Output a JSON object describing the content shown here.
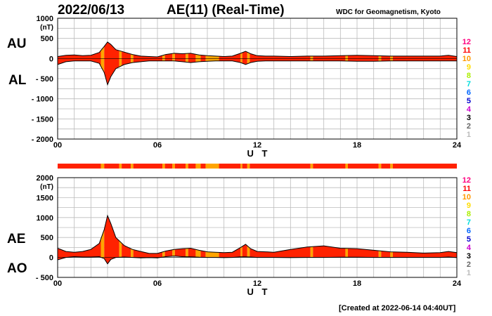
{
  "header": {
    "date": "2022/06/13",
    "title": "AE(11) (Real-Time)",
    "source": "WDC for Geomagnetism, Kyoto"
  },
  "footer": {
    "created": "[Created at 2022-06-14 04:40UT]"
  },
  "colors": {
    "activity_high": "#ff2200",
    "activity_mid": "#ffa500"
  },
  "chart_data": [
    {
      "type": "area",
      "panel": "AU/AL",
      "unit": "(nT)",
      "xlabel": "U T",
      "x_ticks": [
        "00",
        "06",
        "12",
        "18",
        "24"
      ],
      "xlim": [
        0,
        24
      ],
      "ylim": [
        -2000,
        1000
      ],
      "y_ticks": [
        "1000",
        "500",
        "0",
        "- 500",
        "- 1000",
        "- 1500",
        "- 2000"
      ],
      "y_tick_values": [
        1000,
        500,
        0,
        -500,
        -1000,
        -1500,
        -2000
      ],
      "labels": {
        "upper": "AU",
        "lower": "AL"
      },
      "grid": true,
      "series": [
        {
          "name": "AU",
          "x": [
            0,
            0.5,
            1,
            1.5,
            2,
            2.5,
            2.8,
            3,
            3.2,
            3.5,
            4,
            4.5,
            5,
            5.5,
            6,
            6.5,
            7,
            7.5,
            8,
            8.5,
            9,
            9.5,
            10,
            10.5,
            11,
            11.3,
            11.6,
            12,
            12.5,
            13,
            14,
            15,
            16,
            17,
            18,
            19,
            20,
            21,
            22,
            23,
            23.5,
            24
          ],
          "values": [
            50,
            80,
            90,
            70,
            80,
            150,
            300,
            410,
            350,
            220,
            160,
            100,
            60,
            50,
            40,
            100,
            130,
            120,
            130,
            90,
            70,
            60,
            50,
            60,
            130,
            180,
            120,
            70,
            60,
            60,
            50,
            60,
            60,
            70,
            80,
            70,
            60,
            60,
            60,
            60,
            80,
            50
          ]
        },
        {
          "name": "AL",
          "x": [
            0,
            0.5,
            1,
            1.5,
            2,
            2.5,
            2.8,
            3,
            3.2,
            3.5,
            4,
            4.5,
            5,
            5.5,
            6,
            6.5,
            7,
            7.5,
            8,
            8.5,
            9,
            9.5,
            10,
            10.5,
            11,
            11.3,
            11.6,
            12,
            12.5,
            13,
            14,
            15,
            16,
            17,
            18,
            19,
            20,
            21,
            22,
            23,
            23.5,
            24
          ],
          "values": [
            -150,
            -80,
            -60,
            -60,
            -60,
            -120,
            -350,
            -650,
            -450,
            -250,
            -150,
            -100,
            -80,
            -60,
            -60,
            -60,
            -60,
            -80,
            -100,
            -80,
            -70,
            -60,
            -60,
            -60,
            -100,
            -150,
            -100,
            -70,
            -60,
            -60,
            -60,
            -60,
            -60,
            -60,
            -70,
            -70,
            -60,
            -60,
            -60,
            -60,
            -60,
            -60
          ]
        }
      ]
    },
    {
      "type": "area",
      "panel": "AE/AO",
      "unit": "(nT)",
      "xlabel": "U T",
      "x_ticks": [
        "00",
        "06",
        "12",
        "18",
        "24"
      ],
      "xlim": [
        0,
        24
      ],
      "ylim": [
        -500,
        2000
      ],
      "y_ticks": [
        "2000",
        "1500",
        "1000",
        "500",
        "0",
        "- 500"
      ],
      "y_tick_values": [
        2000,
        1500,
        1000,
        500,
        0,
        -500
      ],
      "labels": {
        "upper": "AE",
        "lower": "AO"
      },
      "grid": true,
      "series": [
        {
          "name": "AE",
          "x": [
            0,
            0.5,
            1,
            1.5,
            2,
            2.5,
            2.8,
            3,
            3.2,
            3.5,
            4,
            4.5,
            5,
            5.5,
            6,
            6.5,
            7,
            7.5,
            8,
            8.5,
            9,
            9.5,
            10,
            10.5,
            11,
            11.3,
            11.6,
            12,
            12.5,
            13,
            14,
            15,
            16,
            17,
            18,
            19,
            20,
            21,
            22,
            23,
            23.5,
            24
          ],
          "values": [
            230,
            150,
            130,
            150,
            200,
            350,
            700,
            1050,
            850,
            500,
            300,
            200,
            150,
            100,
            100,
            160,
            200,
            220,
            230,
            180,
            140,
            130,
            120,
            130,
            250,
            330,
            220,
            150,
            140,
            130,
            200,
            260,
            290,
            230,
            220,
            180,
            140,
            130,
            110,
            120,
            150,
            120
          ]
        },
        {
          "name": "AO",
          "x": [
            0,
            0.5,
            1,
            1.5,
            2,
            2.5,
            2.8,
            3,
            3.2,
            3.5,
            4,
            4.5,
            5,
            5.5,
            6,
            6.5,
            7,
            7.5,
            8,
            8.5,
            9,
            9.5,
            10,
            10.5,
            11,
            11.3,
            11.6,
            12,
            12.5,
            13,
            14,
            15,
            16,
            17,
            18,
            19,
            20,
            21,
            22,
            23,
            23.5,
            24
          ],
          "values": [
            -60,
            0,
            20,
            10,
            10,
            20,
            -30,
            -160,
            -50,
            0,
            10,
            0,
            -10,
            -5,
            -10,
            20,
            35,
            20,
            15,
            5,
            0,
            0,
            -5,
            0,
            15,
            15,
            10,
            0,
            0,
            0,
            -5,
            0,
            0,
            5,
            5,
            0,
            0,
            0,
            0,
            0,
            10,
            -5
          ]
        }
      ]
    }
  ],
  "status_bands": [
    {
      "x": [
        0,
        2.6
      ],
      "color": "high"
    },
    {
      "x": [
        2.6,
        2.8
      ],
      "color": "mid"
    },
    {
      "x": [
        2.8,
        3.7
      ],
      "color": "high"
    },
    {
      "x": [
        3.7,
        3.85
      ],
      "color": "mid"
    },
    {
      "x": [
        3.85,
        4.4
      ],
      "color": "high"
    },
    {
      "x": [
        4.4,
        4.55
      ],
      "color": "mid"
    },
    {
      "x": [
        4.55,
        6.3
      ],
      "color": "high"
    },
    {
      "x": [
        6.3,
        6.45
      ],
      "color": "mid"
    },
    {
      "x": [
        6.45,
        6.9
      ],
      "color": "high"
    },
    {
      "x": [
        6.9,
        7.05
      ],
      "color": "mid"
    },
    {
      "x": [
        7.05,
        7.7
      ],
      "color": "high"
    },
    {
      "x": [
        7.7,
        7.85
      ],
      "color": "mid"
    },
    {
      "x": [
        7.85,
        8.3
      ],
      "color": "high"
    },
    {
      "x": [
        8.3,
        8.6
      ],
      "color": "mid"
    },
    {
      "x": [
        8.6,
        8.9
      ],
      "color": "high"
    },
    {
      "x": [
        8.9,
        9.7
      ],
      "color": "mid"
    },
    {
      "x": [
        9.7,
        11.0
      ],
      "color": "high"
    },
    {
      "x": [
        11.0,
        11.1
      ],
      "color": "mid"
    },
    {
      "x": [
        11.1,
        11.4
      ],
      "color": "high"
    },
    {
      "x": [
        11.4,
        11.55
      ],
      "color": "mid"
    },
    {
      "x": [
        11.55,
        15.2
      ],
      "color": "high"
    },
    {
      "x": [
        15.2,
        15.35
      ],
      "color": "mid"
    },
    {
      "x": [
        15.35,
        17.3
      ],
      "color": "high"
    },
    {
      "x": [
        17.3,
        17.45
      ],
      "color": "mid"
    },
    {
      "x": [
        17.45,
        19.3
      ],
      "color": "high"
    },
    {
      "x": [
        19.3,
        19.45
      ],
      "color": "mid"
    },
    {
      "x": [
        19.45,
        20.0
      ],
      "color": "high"
    },
    {
      "x": [
        20.0,
        20.15
      ],
      "color": "mid"
    },
    {
      "x": [
        20.15,
        24
      ],
      "color": "high"
    }
  ],
  "level_legend": [
    {
      "label": "12",
      "color": "#ff0080"
    },
    {
      "label": "11",
      "color": "#ff0000"
    },
    {
      "label": "10",
      "color": "#ff9900"
    },
    {
      "label": "9",
      "color": "#ffdd00"
    },
    {
      "label": "8",
      "color": "#aaee00"
    },
    {
      "label": "7",
      "color": "#00dddd"
    },
    {
      "label": "6",
      "color": "#0066ff"
    },
    {
      "label": "5",
      "color": "#0000cc"
    },
    {
      "label": "4",
      "color": "#cc00cc"
    },
    {
      "label": "3",
      "color": "#000000"
    },
    {
      "label": "2",
      "color": "#666666"
    },
    {
      "label": "1",
      "color": "#bbbbbb"
    }
  ]
}
